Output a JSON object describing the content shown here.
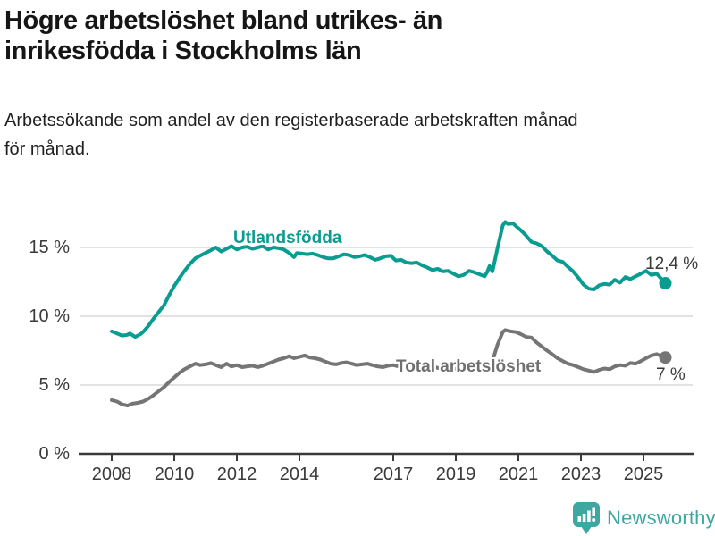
{
  "header": {
    "title_line1": "Högre arbetslöshet bland utrikes- än",
    "title_line2": "inrikesfödda i Stockholms län",
    "subtitle_line1": "Arbetssökande som andel av den registerbaserade arbetskraften månad",
    "subtitle_line2": "för månad."
  },
  "footer": {
    "brand": "Newsworthy",
    "brand_color": "#3fa7a1"
  },
  "chart_data": {
    "type": "line",
    "title": "Högre arbetslöshet bland utrikes- än inrikesfödda i Stockholms län",
    "subtitle": "Arbetssökande som andel av den registerbaserade arbetskraften månad för månad.",
    "xlabel": "",
    "ylabel": "",
    "x_unit": "year (monthly data)",
    "y_unit": "%",
    "xlim": [
      2007.6,
      2026.3
    ],
    "ylim": [
      0,
      18
    ],
    "grid": true,
    "gridline_color": "#d9d9d9",
    "axis_color": "#3a3a3a",
    "legend_position": "inline-labels",
    "y_ticks": [
      {
        "label": "0 %",
        "value": 0
      },
      {
        "label": "5 %",
        "value": 5
      },
      {
        "label": "10 %",
        "value": 10
      },
      {
        "label": "15 %",
        "value": 15
      }
    ],
    "x_ticks": [
      {
        "label": "2008",
        "year": 2008
      },
      {
        "label": "2010",
        "year": 2010
      },
      {
        "label": "2012",
        "year": 2012
      },
      {
        "label": "2014",
        "year": 2014
      },
      {
        "label": "2017",
        "year": 2017
      },
      {
        "label": "2019",
        "year": 2019
      },
      {
        "label": "2021",
        "year": 2021
      },
      {
        "label": "2023",
        "year": 2023
      },
      {
        "label": "2025",
        "year": 2025
      }
    ],
    "series": [
      {
        "name": "Utlandsfödda",
        "color": "#0a9c91",
        "end_label": "12,4 %",
        "end_value": 12.4,
        "points": [
          [
            2008.0,
            8.9
          ],
          [
            2008.17,
            8.75
          ],
          [
            2008.33,
            8.6
          ],
          [
            2008.5,
            8.65
          ],
          [
            2008.58,
            8.75
          ],
          [
            2008.75,
            8.5
          ],
          [
            2008.92,
            8.7
          ],
          [
            2009.0,
            8.85
          ],
          [
            2009.17,
            9.3
          ],
          [
            2009.33,
            9.8
          ],
          [
            2009.5,
            10.3
          ],
          [
            2009.67,
            10.8
          ],
          [
            2009.83,
            11.5
          ],
          [
            2010.0,
            12.2
          ],
          [
            2010.17,
            12.8
          ],
          [
            2010.33,
            13.3
          ],
          [
            2010.5,
            13.8
          ],
          [
            2010.67,
            14.2
          ],
          [
            2010.83,
            14.4
          ],
          [
            2011.0,
            14.6
          ],
          [
            2011.17,
            14.8
          ],
          [
            2011.33,
            15.0
          ],
          [
            2011.5,
            14.7
          ],
          [
            2011.67,
            14.9
          ],
          [
            2011.83,
            15.1
          ],
          [
            2012.0,
            14.85
          ],
          [
            2012.17,
            15.0
          ],
          [
            2012.33,
            15.05
          ],
          [
            2012.5,
            14.9
          ],
          [
            2012.67,
            15.0
          ],
          [
            2012.83,
            15.1
          ],
          [
            2013.0,
            14.85
          ],
          [
            2013.17,
            15.0
          ],
          [
            2013.33,
            14.95
          ],
          [
            2013.5,
            14.85
          ],
          [
            2013.67,
            14.6
          ],
          [
            2013.83,
            14.3
          ],
          [
            2013.92,
            14.6
          ],
          [
            2014.08,
            14.55
          ],
          [
            2014.25,
            14.5
          ],
          [
            2014.42,
            14.55
          ],
          [
            2014.58,
            14.45
          ],
          [
            2014.75,
            14.3
          ],
          [
            2014.92,
            14.2
          ],
          [
            2015.08,
            14.2
          ],
          [
            2015.25,
            14.35
          ],
          [
            2015.42,
            14.5
          ],
          [
            2015.58,
            14.45
          ],
          [
            2015.75,
            14.3
          ],
          [
            2015.92,
            14.35
          ],
          [
            2016.08,
            14.45
          ],
          [
            2016.25,
            14.3
          ],
          [
            2016.42,
            14.1
          ],
          [
            2016.58,
            14.2
          ],
          [
            2016.75,
            14.35
          ],
          [
            2016.92,
            14.4
          ],
          [
            2017.08,
            14.05
          ],
          [
            2017.25,
            14.1
          ],
          [
            2017.42,
            13.9
          ],
          [
            2017.58,
            13.85
          ],
          [
            2017.75,
            13.9
          ],
          [
            2017.92,
            13.7
          ],
          [
            2018.08,
            13.55
          ],
          [
            2018.25,
            13.35
          ],
          [
            2018.42,
            13.45
          ],
          [
            2018.58,
            13.25
          ],
          [
            2018.75,
            13.3
          ],
          [
            2018.92,
            13.1
          ],
          [
            2019.08,
            12.9
          ],
          [
            2019.25,
            13.0
          ],
          [
            2019.42,
            13.3
          ],
          [
            2019.58,
            13.2
          ],
          [
            2019.75,
            13.05
          ],
          [
            2019.92,
            12.9
          ],
          [
            2020.0,
            13.2
          ],
          [
            2020.08,
            13.65
          ],
          [
            2020.17,
            13.25
          ],
          [
            2020.33,
            14.9
          ],
          [
            2020.5,
            16.6
          ],
          [
            2020.58,
            16.85
          ],
          [
            2020.67,
            16.7
          ],
          [
            2020.83,
            16.75
          ],
          [
            2020.92,
            16.55
          ],
          [
            2021.08,
            16.25
          ],
          [
            2021.25,
            15.85
          ],
          [
            2021.42,
            15.4
          ],
          [
            2021.58,
            15.3
          ],
          [
            2021.75,
            15.1
          ],
          [
            2021.92,
            14.7
          ],
          [
            2022.08,
            14.4
          ],
          [
            2022.25,
            14.05
          ],
          [
            2022.42,
            13.95
          ],
          [
            2022.58,
            13.6
          ],
          [
            2022.75,
            13.25
          ],
          [
            2022.92,
            12.8
          ],
          [
            2023.08,
            12.3
          ],
          [
            2023.25,
            12.0
          ],
          [
            2023.42,
            11.95
          ],
          [
            2023.58,
            12.25
          ],
          [
            2023.75,
            12.35
          ],
          [
            2023.92,
            12.3
          ],
          [
            2024.08,
            12.65
          ],
          [
            2024.25,
            12.45
          ],
          [
            2024.42,
            12.85
          ],
          [
            2024.58,
            12.7
          ],
          [
            2024.75,
            12.9
          ],
          [
            2024.92,
            13.1
          ],
          [
            2025.08,
            13.3
          ],
          [
            2025.25,
            13.0
          ],
          [
            2025.42,
            13.1
          ],
          [
            2025.58,
            12.7
          ],
          [
            2025.7,
            12.4
          ]
        ]
      },
      {
        "name": "Total arbetslöshet",
        "color": "#757575",
        "end_label": "7 %",
        "end_value": 7.0,
        "points": [
          [
            2008.0,
            3.9
          ],
          [
            2008.17,
            3.8
          ],
          [
            2008.33,
            3.6
          ],
          [
            2008.5,
            3.5
          ],
          [
            2008.67,
            3.65
          ],
          [
            2008.83,
            3.7
          ],
          [
            2009.0,
            3.8
          ],
          [
            2009.17,
            4.0
          ],
          [
            2009.33,
            4.25
          ],
          [
            2009.5,
            4.55
          ],
          [
            2009.67,
            4.85
          ],
          [
            2009.83,
            5.2
          ],
          [
            2010.0,
            5.55
          ],
          [
            2010.17,
            5.9
          ],
          [
            2010.33,
            6.15
          ],
          [
            2010.5,
            6.35
          ],
          [
            2010.67,
            6.55
          ],
          [
            2010.83,
            6.45
          ],
          [
            2011.0,
            6.5
          ],
          [
            2011.17,
            6.6
          ],
          [
            2011.33,
            6.45
          ],
          [
            2011.5,
            6.3
          ],
          [
            2011.67,
            6.55
          ],
          [
            2011.83,
            6.35
          ],
          [
            2012.0,
            6.45
          ],
          [
            2012.17,
            6.3
          ],
          [
            2012.33,
            6.35
          ],
          [
            2012.5,
            6.4
          ],
          [
            2012.67,
            6.3
          ],
          [
            2012.83,
            6.4
          ],
          [
            2013.0,
            6.55
          ],
          [
            2013.17,
            6.7
          ],
          [
            2013.33,
            6.85
          ],
          [
            2013.5,
            6.95
          ],
          [
            2013.67,
            7.1
          ],
          [
            2013.83,
            6.95
          ],
          [
            2014.0,
            7.05
          ],
          [
            2014.17,
            7.15
          ],
          [
            2014.33,
            7.0
          ],
          [
            2014.5,
            6.95
          ],
          [
            2014.67,
            6.85
          ],
          [
            2014.83,
            6.7
          ],
          [
            2015.0,
            6.55
          ],
          [
            2015.17,
            6.5
          ],
          [
            2015.33,
            6.6
          ],
          [
            2015.5,
            6.65
          ],
          [
            2015.67,
            6.55
          ],
          [
            2015.83,
            6.45
          ],
          [
            2016.0,
            6.5
          ],
          [
            2016.17,
            6.55
          ],
          [
            2016.33,
            6.45
          ],
          [
            2016.5,
            6.35
          ],
          [
            2016.67,
            6.3
          ],
          [
            2016.83,
            6.4
          ],
          [
            2017.0,
            6.45
          ],
          [
            2017.17,
            6.35
          ],
          [
            2017.33,
            6.3
          ],
          [
            2017.5,
            6.4
          ],
          [
            2017.67,
            6.35
          ],
          [
            2017.83,
            6.25
          ],
          [
            2018.0,
            6.3
          ],
          [
            2018.17,
            6.25
          ],
          [
            2018.33,
            6.3
          ],
          [
            2018.5,
            6.2
          ],
          [
            2018.67,
            6.25
          ],
          [
            2018.83,
            6.15
          ],
          [
            2019.0,
            6.2
          ],
          [
            2019.17,
            6.1
          ],
          [
            2019.33,
            6.15
          ],
          [
            2019.5,
            6.0
          ],
          [
            2019.67,
            6.1
          ],
          [
            2019.83,
            6.15
          ],
          [
            2020.0,
            6.3
          ],
          [
            2020.08,
            6.45
          ],
          [
            2020.17,
            6.75
          ],
          [
            2020.33,
            7.9
          ],
          [
            2020.5,
            8.85
          ],
          [
            2020.58,
            9.0
          ],
          [
            2020.75,
            8.9
          ],
          [
            2020.92,
            8.85
          ],
          [
            2021.08,
            8.7
          ],
          [
            2021.25,
            8.5
          ],
          [
            2021.42,
            8.45
          ],
          [
            2021.58,
            8.1
          ],
          [
            2021.75,
            7.8
          ],
          [
            2021.92,
            7.5
          ],
          [
            2022.08,
            7.25
          ],
          [
            2022.25,
            6.95
          ],
          [
            2022.42,
            6.75
          ],
          [
            2022.58,
            6.55
          ],
          [
            2022.75,
            6.45
          ],
          [
            2022.92,
            6.3
          ],
          [
            2023.08,
            6.15
          ],
          [
            2023.25,
            6.05
          ],
          [
            2023.42,
            5.95
          ],
          [
            2023.58,
            6.1
          ],
          [
            2023.75,
            6.2
          ],
          [
            2023.92,
            6.15
          ],
          [
            2024.08,
            6.35
          ],
          [
            2024.25,
            6.45
          ],
          [
            2024.42,
            6.4
          ],
          [
            2024.58,
            6.6
          ],
          [
            2024.75,
            6.55
          ],
          [
            2024.92,
            6.75
          ],
          [
            2025.08,
            6.95
          ],
          [
            2025.25,
            7.15
          ],
          [
            2025.42,
            7.25
          ],
          [
            2025.58,
            7.1
          ],
          [
            2025.7,
            7.0
          ]
        ]
      }
    ]
  }
}
